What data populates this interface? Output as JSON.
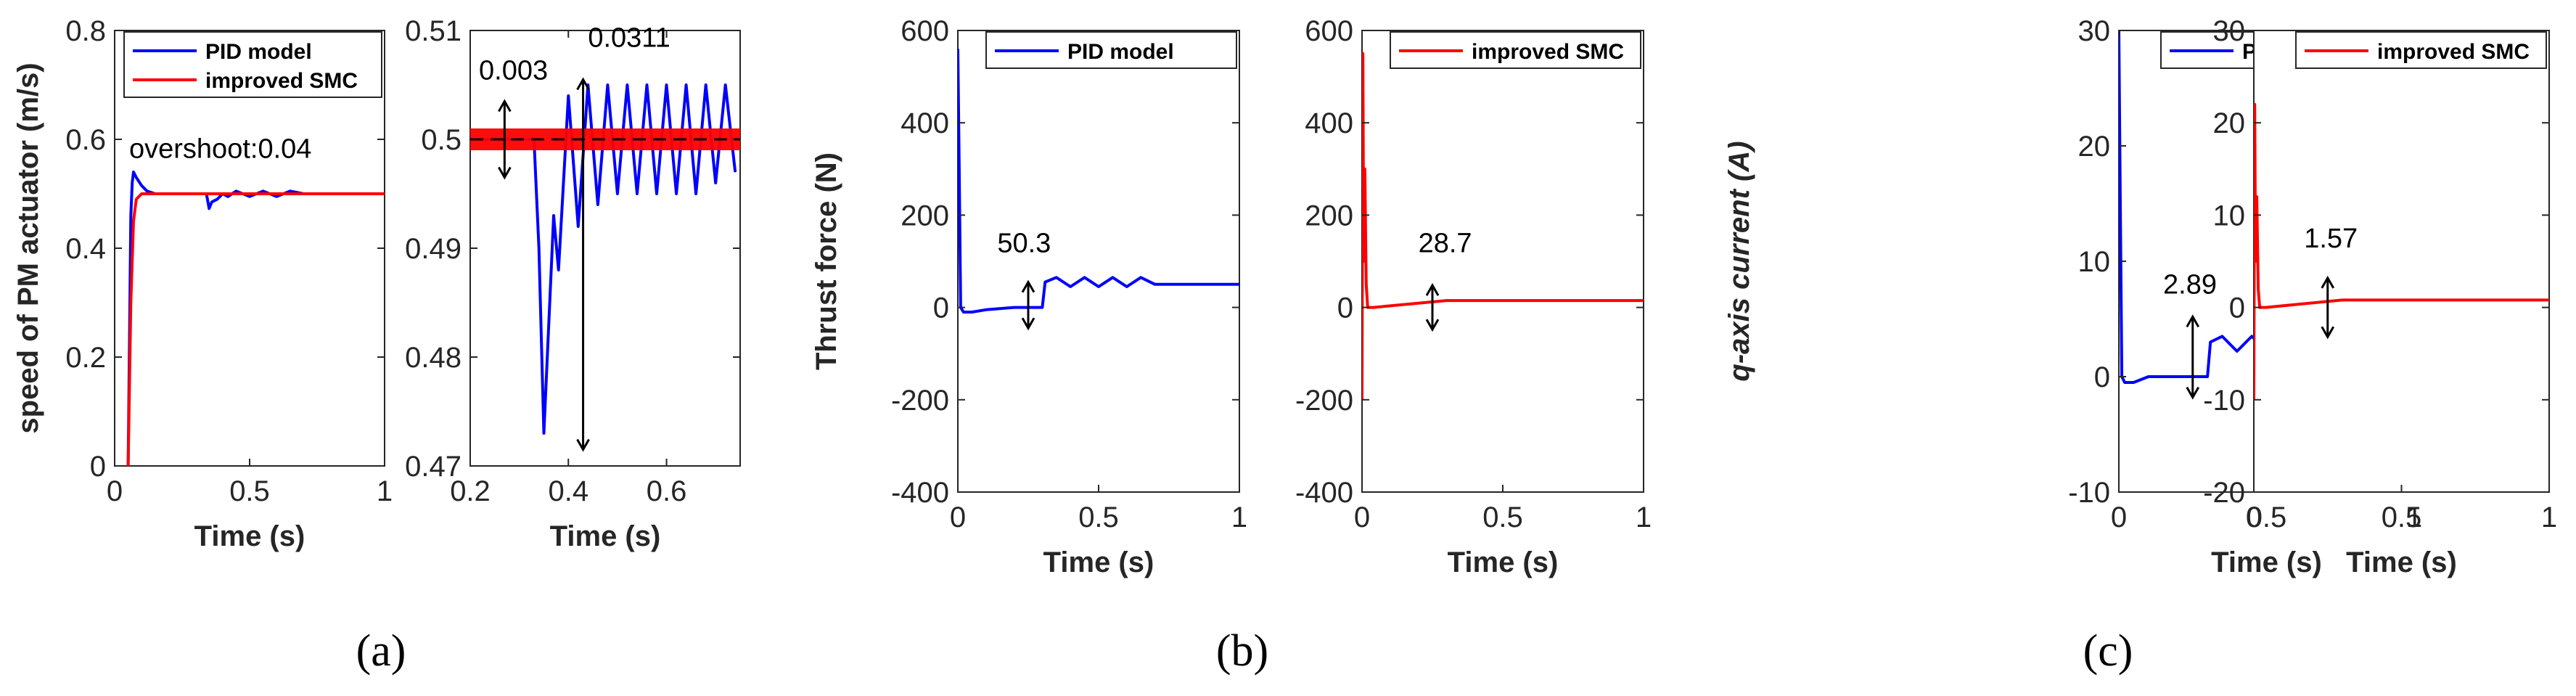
{
  "panel_labels": [
    "(a)",
    "(b)",
    "(c)"
  ],
  "colors": {
    "pid": "#0000ff",
    "smc": "#ff0000",
    "axis": "#262626",
    "reference": "#000000"
  },
  "chart_data": [
    {
      "type": "line",
      "panel": "(a)",
      "title": "",
      "xlabel": "Time (s)",
      "ylabel": "speed of PM actuator (m/s)",
      "xlim": [
        0,
        1
      ],
      "ylim": [
        0,
        0.8
      ],
      "xticks": [
        "0",
        "0.5",
        "1"
      ],
      "yticks": [
        "0",
        "0.2",
        "0.4",
        "0.6",
        "0.8"
      ],
      "legend": [
        "PID model",
        "improved SMC"
      ],
      "legend_position": "top-right",
      "annotations": [
        "overshoot:0.04"
      ],
      "series": [
        {
          "name": "PID model",
          "x": [
            0.05,
            0.06,
            0.065,
            0.07,
            0.08,
            0.1,
            0.12,
            0.15,
            0.2,
            0.3,
            0.34,
            0.35,
            0.36,
            0.38,
            0.4,
            0.42,
            0.45,
            0.5,
            0.55,
            0.6,
            0.65,
            0.7,
            1.0
          ],
          "y": [
            0.0,
            0.46,
            0.52,
            0.54,
            0.53,
            0.515,
            0.505,
            0.5,
            0.5,
            0.5,
            0.5,
            0.473,
            0.485,
            0.49,
            0.5,
            0.495,
            0.505,
            0.495,
            0.505,
            0.495,
            0.505,
            0.5,
            0.5
          ]
        },
        {
          "name": "improved SMC",
          "x": [
            0.05,
            0.06,
            0.07,
            0.08,
            0.1,
            0.12,
            1.0
          ],
          "y": [
            0.0,
            0.3,
            0.45,
            0.49,
            0.5,
            0.5,
            0.5
          ]
        }
      ]
    },
    {
      "type": "line",
      "panel": "(a) zoom",
      "title": "",
      "xlabel": "Time (s)",
      "ylabel": "",
      "xlim": [
        0.2,
        0.75
      ],
      "ylim": [
        0.47,
        0.51
      ],
      "xticks": [
        "0.2",
        "0.4",
        "0.6"
      ],
      "yticks": [
        "0.47",
        "0.48",
        "0.49",
        "0.5",
        "0.51"
      ],
      "annotations": [
        "0.003",
        "0.0311"
      ],
      "reference_line": 0.5,
      "series": [
        {
          "name": "PID model",
          "x": [
            0.2,
            0.33,
            0.34,
            0.35,
            0.37,
            0.38,
            0.4,
            0.42,
            0.44,
            0.46,
            0.48,
            0.5,
            0.52,
            0.54,
            0.56,
            0.58,
            0.6,
            0.62,
            0.64,
            0.66,
            0.68,
            0.7,
            0.72,
            0.74
          ],
          "y": [
            0.5,
            0.5,
            0.49,
            0.473,
            0.493,
            0.488,
            0.504,
            0.492,
            0.505,
            0.494,
            0.505,
            0.495,
            0.505,
            0.495,
            0.505,
            0.495,
            0.505,
            0.495,
            0.505,
            0.495,
            0.505,
            0.496,
            0.505,
            0.497
          ]
        },
        {
          "name": "improved SMC",
          "band": [
            0.499,
            0.501
          ]
        }
      ]
    },
    {
      "type": "line",
      "panel": "(b)",
      "title": "",
      "xlabel": "Time (s)",
      "ylabel": "Thrust force (N)",
      "xlim": [
        0,
        1
      ],
      "ylim": [
        -400,
        600
      ],
      "xticks": [
        "0",
        "0.5",
        "1"
      ],
      "yticks": [
        "-400",
        "-200",
        "0",
        "200",
        "400",
        "600"
      ],
      "legend": [
        "PID model"
      ],
      "legend_position": "top-right",
      "annotations": [
        "50.3"
      ],
      "series": [
        {
          "name": "PID model",
          "x": [
            0.0,
            0.005,
            0.01,
            0.02,
            0.05,
            0.1,
            0.2,
            0.3,
            0.31,
            0.35,
            0.4,
            0.45,
            0.5,
            0.55,
            0.6,
            0.65,
            0.7,
            1.0
          ],
          "y": [
            560,
            300,
            0,
            -10,
            -10,
            -5,
            0,
            0,
            55,
            65,
            45,
            65,
            45,
            65,
            45,
            65,
            50,
            50
          ]
        }
      ]
    },
    {
      "type": "line",
      "panel": "(b) right",
      "title": "",
      "xlabel": "Time (s)",
      "ylabel": "",
      "xlim": [
        0,
        1
      ],
      "ylim": [
        -400,
        600
      ],
      "xticks": [
        "0",
        "0.5",
        "1"
      ],
      "yticks": [
        "-400",
        "-200",
        "0",
        "200",
        "400",
        "600"
      ],
      "legend": [
        "improved SMC"
      ],
      "legend_position": "top-right",
      "annotations": [
        "28.7"
      ],
      "series": [
        {
          "name": "improved SMC",
          "x": [
            0.0,
            0.003,
            0.006,
            0.01,
            0.015,
            0.02,
            0.04,
            0.3,
            1.0
          ],
          "y": [
            -200,
            550,
            100,
            300,
            50,
            0,
            0,
            15,
            15
          ]
        }
      ]
    },
    {
      "type": "line",
      "panel": "(c)",
      "title": "",
      "xlabel": "Time (s)",
      "ylabel": "q-axis current (A)",
      "xlim": [
        0,
        1
      ],
      "ylim": [
        -10,
        30
      ],
      "xticks": [
        "0",
        "0.5",
        "1"
      ],
      "yticks": [
        "-10",
        "0",
        "10",
        "20",
        "30"
      ],
      "legend": [
        "PID model"
      ],
      "legend_position": "top-right",
      "annotations": [
        "2.89"
      ],
      "series": [
        {
          "name": "PID model",
          "x": [
            0.0,
            0.005,
            0.01,
            0.02,
            0.05,
            0.1,
            0.2,
            0.3,
            0.31,
            0.35,
            0.4,
            0.45,
            0.5,
            0.55,
            0.6,
            0.65,
            0.7,
            1.0
          ],
          "y": [
            30,
            15,
            0,
            -0.5,
            -0.5,
            0,
            0,
            0,
            3,
            3.5,
            2.2,
            3.5,
            2.2,
            3.5,
            2.2,
            3.5,
            2.7,
            2.7
          ]
        }
      ]
    },
    {
      "type": "line",
      "panel": "(c) right",
      "title": "",
      "xlabel": "Time (s)",
      "ylabel": "",
      "xlim": [
        0,
        1
      ],
      "ylim": [
        -20,
        30
      ],
      "xticks": [
        "0",
        "0.5",
        "1"
      ],
      "yticks": [
        "-20",
        "-10",
        "0",
        "10",
        "20",
        "30"
      ],
      "legend": [
        "improved SMC"
      ],
      "legend_position": "top-right",
      "annotations": [
        "1.57"
      ],
      "series": [
        {
          "name": "improved SMC",
          "x": [
            0.0,
            0.003,
            0.006,
            0.01,
            0.015,
            0.02,
            0.04,
            0.3,
            1.0
          ],
          "y": [
            -10,
            22,
            5,
            12,
            2,
            0,
            0,
            0.8,
            0.8
          ]
        }
      ]
    }
  ]
}
